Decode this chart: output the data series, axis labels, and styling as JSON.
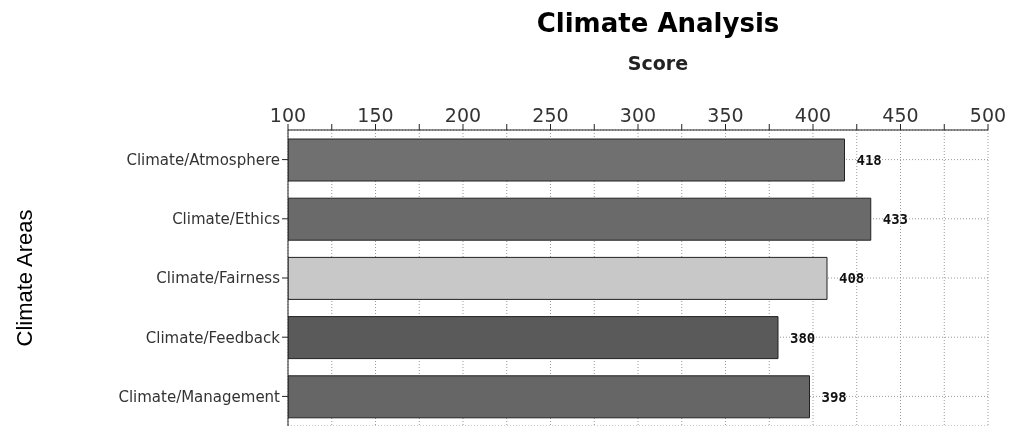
{
  "chart_data": {
    "type": "bar",
    "orientation": "horizontal",
    "title": "Climate Analysis",
    "xlabel": "Score",
    "ylabel": "Climate Areas",
    "categories": [
      "Climate/Atmosphere",
      "Climate/Ethics",
      "Climate/Fairness",
      "Climate/Feedback",
      "Climate/Management"
    ],
    "values": [
      418,
      433,
      408,
      380,
      398
    ],
    "colors": [
      "#707070",
      "#6a6a6a",
      "#c8c8c8",
      "#5a5a5a",
      "#666666"
    ],
    "xlim": [
      100,
      500
    ],
    "xticks": [
      100,
      {
        "value": 125,
        "label": null
      },
      150,
      {
        "value": 175,
        "label": null
      },
      200,
      {
        "value": 225,
        "label": null
      },
      250,
      {
        "value": 275,
        "label": null
      },
      300,
      {
        "value": 325,
        "label": null
      },
      350,
      {
        "value": 375,
        "label": null
      },
      400,
      {
        "value": 425,
        "label": null
      },
      450,
      {
        "value": 475,
        "label": null
      },
      500
    ],
    "grid": true,
    "data_labels": true
  }
}
